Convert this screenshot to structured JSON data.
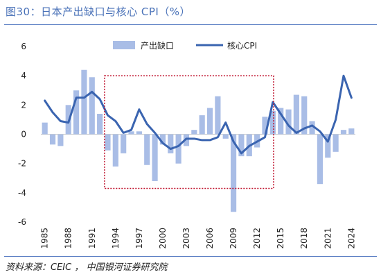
{
  "figure": {
    "title": "图30：日本产出缺口与核心 CPI（%）",
    "source": "资料来源：CEIC ， 中国银河证券研究院"
  },
  "colors": {
    "bar": "#a9bde6",
    "line": "#3a64b0",
    "box": "#c0152f",
    "title": "#4a72b8"
  },
  "chart_data": {
    "type": "bar+line",
    "ylim": [
      -6,
      6
    ],
    "yticks": [
      -6,
      -4,
      -2,
      0,
      2,
      4,
      6
    ],
    "xtick_labels": [
      "1985",
      "1988",
      "1991",
      "1994",
      "1997",
      "2000",
      "2003",
      "2006",
      "2009",
      "2012",
      "2015",
      "2018",
      "2021",
      "2024"
    ],
    "legend": {
      "position": "top-center",
      "items": [
        "产出缺口",
        "核心CPI"
      ]
    },
    "x": [
      1985,
      1986,
      1987,
      1988,
      1989,
      1990,
      1991,
      1992,
      1993,
      1994,
      1995,
      1996,
      1997,
      1998,
      1999,
      2000,
      2001,
      2002,
      2003,
      2004,
      2005,
      2006,
      2007,
      2008,
      2009,
      2010,
      2011,
      2012,
      2013,
      2014,
      2015,
      2016,
      2017,
      2018,
      2019,
      2020,
      2021,
      2022,
      2023,
      2024
    ],
    "series": [
      {
        "name": "产出缺口",
        "kind": "bar",
        "values": [
          0.8,
          -0.7,
          -0.8,
          2.0,
          3.0,
          4.4,
          3.9,
          1.4,
          -1.1,
          -2.2,
          -1.3,
          0.2,
          0.2,
          -2.1,
          -3.2,
          -0.7,
          -1.3,
          -2.0,
          -0.8,
          0.3,
          1.3,
          1.8,
          2.6,
          -0.3,
          -5.3,
          -1.5,
          -1.5,
          -0.9,
          1.2,
          1.6,
          1.8,
          1.7,
          2.7,
          2.6,
          0.9,
          -3.4,
          -1.6,
          -1.2,
          0.3,
          0.4
        ]
      },
      {
        "name": "核心CPI",
        "kind": "line",
        "values": [
          2.3,
          1.5,
          0.9,
          0.8,
          2.5,
          2.5,
          2.9,
          2.4,
          1.3,
          0.9,
          0.1,
          0.3,
          1.7,
          0.7,
          0.1,
          -0.6,
          -1.0,
          -0.8,
          -0.3,
          -0.3,
          -0.4,
          -0.4,
          -0.2,
          0.8,
          -0.5,
          -1.3,
          -0.8,
          -0.5,
          -0.2,
          2.2,
          1.4,
          0.6,
          0.1,
          0.4,
          0.6,
          0.2,
          -0.5,
          1.0,
          4.0,
          2.5
        ]
      }
    ],
    "highlight_box": {
      "x_range": [
        1992.6,
        2014.1
      ],
      "y_range": [
        -3.7,
        4.0
      ]
    }
  }
}
